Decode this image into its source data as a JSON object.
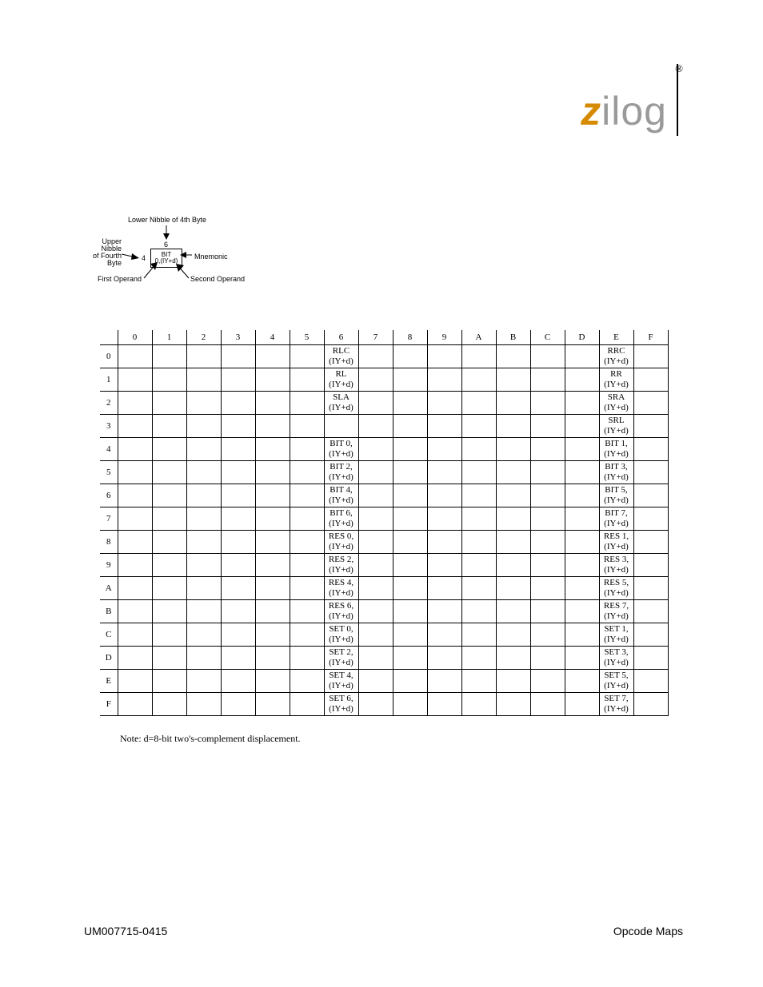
{
  "header": {
    "registered": "®",
    "logo_z": "z",
    "logo_rest": "ilog"
  },
  "diagram": {
    "lower_nibble_label": "Lower Nibble of 4th Byte",
    "upper_nibble_label_l1": "Upper",
    "upper_nibble_label_l2": "Nibble",
    "upper_nibble_label_l3": "of Fourth",
    "upper_nibble_label_l4": "Byte",
    "col_header": "6",
    "row_header": "4",
    "cell_line1": "BIT",
    "cell_line2": "0,(IY+d)",
    "mnemonic_label": "Mnemonic",
    "first_operand_label": "First Operand",
    "second_operand_label": "Second Operand"
  },
  "table": {
    "col_headers": [
      "0",
      "1",
      "2",
      "3",
      "4",
      "5",
      "6",
      "7",
      "8",
      "9",
      "A",
      "B",
      "C",
      "D",
      "E",
      "F"
    ],
    "row_headers": [
      "0",
      "1",
      "2",
      "3",
      "4",
      "5",
      "6",
      "7",
      "8",
      "9",
      "A",
      "B",
      "C",
      "D",
      "E",
      "F"
    ],
    "cells": {
      "r0c6": {
        "l1": "RLC",
        "l2": "(IY+d)"
      },
      "r0cE": {
        "l1": "RRC",
        "l2": "(IY+d)"
      },
      "r1c6": {
        "l1": "RL",
        "l2": "(IY+d)"
      },
      "r1cE": {
        "l1": "RR",
        "l2": "(IY+d)"
      },
      "r2c6": {
        "l1": "SLA",
        "l2": "(IY+d)"
      },
      "r2cE": {
        "l1": "SRA",
        "l2": "(IY+d)"
      },
      "r3cE": {
        "l1": "SRL",
        "l2": "(IY+d)"
      },
      "r4c6": {
        "l1": "BIT 0,",
        "l2": "(IY+d)"
      },
      "r4cE": {
        "l1": "BIT 1,",
        "l2": "(IY+d)"
      },
      "r5c6": {
        "l1": "BIT 2,",
        "l2": "(IY+d)"
      },
      "r5cE": {
        "l1": "BIT 3,",
        "l2": "(IY+d)"
      },
      "r6c6": {
        "l1": "BIT 4,",
        "l2": "(IY+d)"
      },
      "r6cE": {
        "l1": "BIT 5,",
        "l2": "(IY+d)"
      },
      "r7c6": {
        "l1": "BIT 6,",
        "l2": "(IY+d)"
      },
      "r7cE": {
        "l1": "BIT 7,",
        "l2": "(IY+d)"
      },
      "r8c6": {
        "l1": "RES 0,",
        "l2": "(IY+d)"
      },
      "r8cE": {
        "l1": "RES 1,",
        "l2": "(IY+d)"
      },
      "r9c6": {
        "l1": "RES 2,",
        "l2": "(IY+d)"
      },
      "r9cE": {
        "l1": "RES 3,",
        "l2": "(IY+d)"
      },
      "rAc6": {
        "l1": "RES 4,",
        "l2": "(IY+d)"
      },
      "rAcE": {
        "l1": "RES 5,",
        "l2": "(IY+d)"
      },
      "rBc6": {
        "l1": "RES 6,",
        "l2": "(IY+d)"
      },
      "rBcE": {
        "l1": "RES 7,",
        "l2": "(IY+d)"
      },
      "rCc6": {
        "l1": "SET 0,",
        "l2": "(IY+d)"
      },
      "rCcE": {
        "l1": "SET 1,",
        "l2": "(IY+d)"
      },
      "rDc6": {
        "l1": "SET 2,",
        "l2": "(IY+d)"
      },
      "rDcE": {
        "l1": "SET 3,",
        "l2": "(IY+d)"
      },
      "rEc6": {
        "l1": "SET 4,",
        "l2": "(IY+d)"
      },
      "rEcE": {
        "l1": "SET 5,",
        "l2": "(IY+d)"
      },
      "rFc6": {
        "l1": "SET 6,",
        "l2": "(IY+d)"
      },
      "rFcE": {
        "l1": "SET 7,",
        "l2": "(IY+d)"
      }
    }
  },
  "note": "Note: d=8-bit two's-complement displacement.",
  "footer": {
    "left": "UM007715-0415",
    "right": "Opcode Maps"
  }
}
